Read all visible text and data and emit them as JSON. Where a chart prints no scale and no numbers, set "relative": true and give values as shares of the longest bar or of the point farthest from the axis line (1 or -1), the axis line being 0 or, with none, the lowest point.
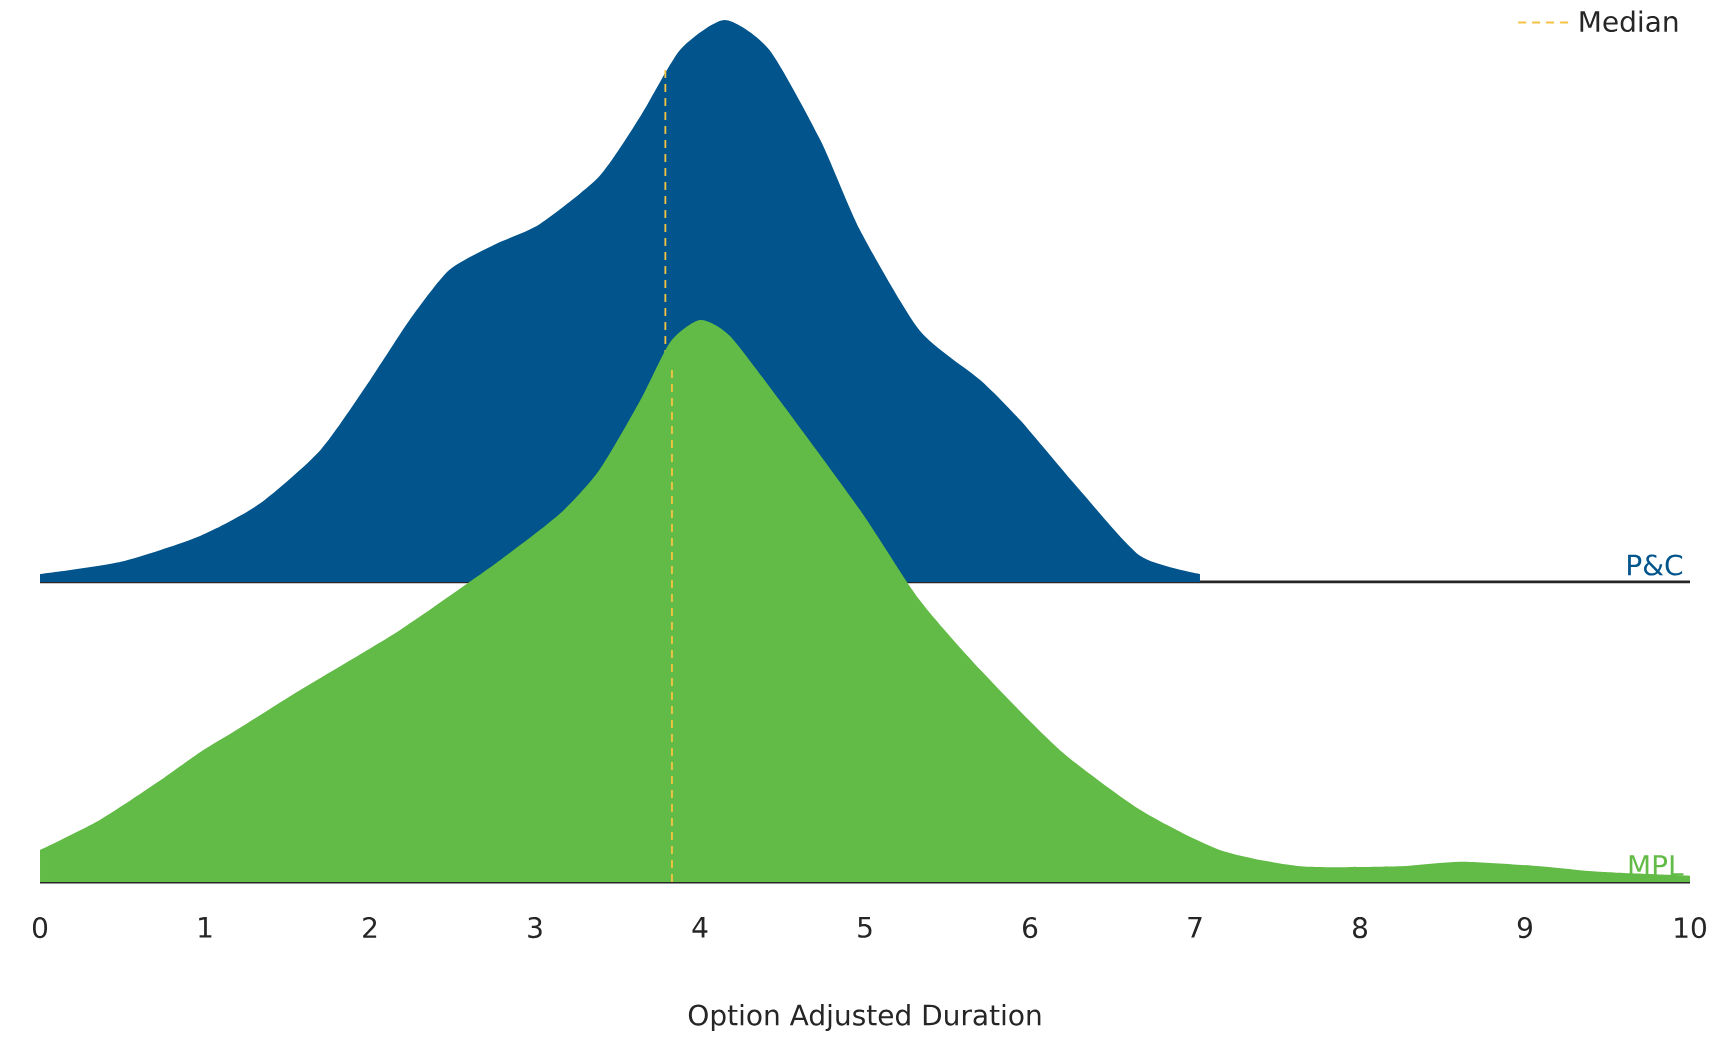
{
  "chart_data": [
    {
      "type": "area",
      "relative": true,
      "xlim": [
        0,
        10
      ],
      "xticks": [
        0,
        1,
        2,
        3,
        4,
        5,
        6,
        7,
        8,
        9,
        10
      ],
      "tick_labels": false,
      "legend": "top right",
      "series": [
        {
          "name": "P&C",
          "color": "#02548c",
          "x": [
            0,
            0.49,
            0.97,
            1.33,
            1.7,
            2.0,
            2.24,
            2.48,
            2.76,
            3.03,
            3.39,
            3.64,
            3.88,
            4.15,
            4.42,
            4.73,
            4.97,
            5.33,
            5.7,
            5.94,
            6.3,
            6.67,
            7.03
          ],
          "values": [
            0.014,
            0.036,
            0.082,
            0.139,
            0.235,
            0.359,
            0.466,
            0.555,
            0.601,
            0.637,
            0.722,
            0.829,
            0.947,
            1.0,
            0.947,
            0.786,
            0.626,
            0.448,
            0.359,
            0.288,
            0.164,
            0.046,
            0.014
          ]
        }
      ],
      "ref_lines": [
        {
          "axis": "x",
          "value": 3.79,
          "label": "Median",
          "color": "#f5c242",
          "line_style": "dashed"
        }
      ]
    },
    {
      "type": "area",
      "relative": true,
      "xlabel": "Option Adjusted Duration",
      "xlim": [
        0,
        10
      ],
      "xticks": [
        0,
        1,
        2,
        3,
        4,
        5,
        6,
        7,
        8,
        9,
        10
      ],
      "series": [
        {
          "name": "MPL",
          "color": "#62bb46",
          "x": [
            0,
            0.36,
            0.73,
            0.97,
            1.21,
            1.58,
            2.18,
            2.79,
            3.15,
            3.39,
            3.64,
            3.82,
            4.0,
            4.18,
            4.48,
            4.97,
            5.33,
            5.7,
            6.18,
            6.67,
            7.15,
            7.64,
            8.24,
            8.61,
            9.09,
            9.45,
            10
          ],
          "values": [
            0.057,
            0.11,
            0.181,
            0.231,
            0.274,
            0.342,
            0.448,
            0.573,
            0.655,
            0.733,
            0.858,
            0.961,
            1.0,
            0.972,
            0.858,
            0.662,
            0.502,
            0.377,
            0.235,
            0.128,
            0.057,
            0.028,
            0.028,
            0.036,
            0.028,
            0.018,
            0.011
          ]
        }
      ],
      "ref_lines": [
        {
          "axis": "x",
          "value": 3.83,
          "color": "#f5c242",
          "line_style": "dashed"
        }
      ]
    }
  ]
}
